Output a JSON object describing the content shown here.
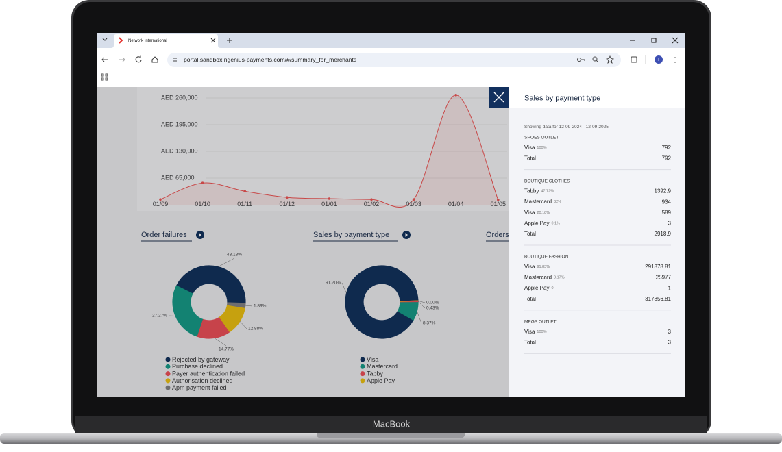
{
  "browser": {
    "tab_title": "Network International",
    "url": "portal.sandbox.ngenius-payments.com/#/summary_for_merchants",
    "profile_initial": "I"
  },
  "line_chart": {
    "type": "line",
    "categories": [
      "01/09",
      "01/10",
      "01/11",
      "01/12",
      "01/01",
      "01/02",
      "01/03",
      "01/04",
      "01/05"
    ],
    "values": [
      13000,
      53000,
      33000,
      18000,
      15000,
      13000,
      13000,
      267000,
      12000
    ],
    "color": "#c84747",
    "ylim": [
      0,
      286000
    ],
    "yticks": [
      {
        "value": 65000,
        "label": "AED 65,000"
      },
      {
        "value": 130000,
        "label": "AED 130,000"
      },
      {
        "value": 195000,
        "label": "AED 195,000"
      },
      {
        "value": 260000,
        "label": "AED 260,000"
      }
    ],
    "grid": true
  },
  "order_failures": {
    "type": "pie",
    "title": "Order failures",
    "categories": [
      "Rejected by gateway",
      "Purchase declined",
      "Payer authentication failed",
      "Authorisation declined",
      "Apm payment failed"
    ],
    "values": [
      43.18,
      27.27,
      14.77,
      12.88,
      1.89
    ],
    "value_labels": [
      "43.18%",
      "27.27%",
      "14.77%",
      "12.88%",
      "1.89%"
    ],
    "colors": [
      "#0f2a4e",
      "#138272",
      "#c7434a",
      "#c6a10f",
      "#6d6d6f"
    ]
  },
  "sales_by_payment_type": {
    "type": "pie",
    "title": "Sales by payment type",
    "categories": [
      "Visa",
      "Mastercard",
      "Tabby",
      "Apple Pay"
    ],
    "values": [
      91.2,
      8.37,
      0.43,
      0
    ],
    "value_labels": [
      "91.20%",
      "8.37%",
      "0.43%",
      "0.00%"
    ],
    "colors": [
      "#0f2a4e",
      "#138272",
      "#c7434a",
      "#c6a10f"
    ]
  },
  "orders": {
    "title": "Orders"
  },
  "panel": {
    "title": "Sales by payment type",
    "subtitle": "Showing data for 12-09-2024 - 12-09-2025",
    "sections": [
      {
        "name": "SHOES OUTLET",
        "rows": [
          {
            "label": "Visa",
            "share": "100%",
            "amount": "792"
          }
        ],
        "total": {
          "label": "Total",
          "amount": "792"
        }
      },
      {
        "name": "BOUTIQUE CLOTHES",
        "rows": [
          {
            "label": "Tabby",
            "share": "47.72%",
            "amount": "1392.9"
          },
          {
            "label": "Mastercard",
            "share": "32%",
            "amount": "934"
          },
          {
            "label": "Visa",
            "share": "20.18%",
            "amount": "589"
          },
          {
            "label": "Apple Pay",
            "share": "0.1%",
            "amount": "3"
          }
        ],
        "total": {
          "label": "Total",
          "amount": "2918.9"
        }
      },
      {
        "name": "BOUTIQUE FASHION",
        "rows": [
          {
            "label": "Visa",
            "share": "91.83%",
            "amount": "291878.81"
          },
          {
            "label": "Mastercard",
            "share": "8.17%",
            "amount": "25977"
          },
          {
            "label": "Apple Pay",
            "share": "0",
            "amount": "1"
          }
        ],
        "total": {
          "label": "Total",
          "amount": "317856.81"
        }
      },
      {
        "name": "MPGS OUTLET",
        "rows": [
          {
            "label": "Visa",
            "share": "100%",
            "amount": "3"
          }
        ],
        "total": {
          "label": "Total",
          "amount": "3"
        }
      }
    ]
  },
  "device": {
    "label": "MacBook"
  }
}
